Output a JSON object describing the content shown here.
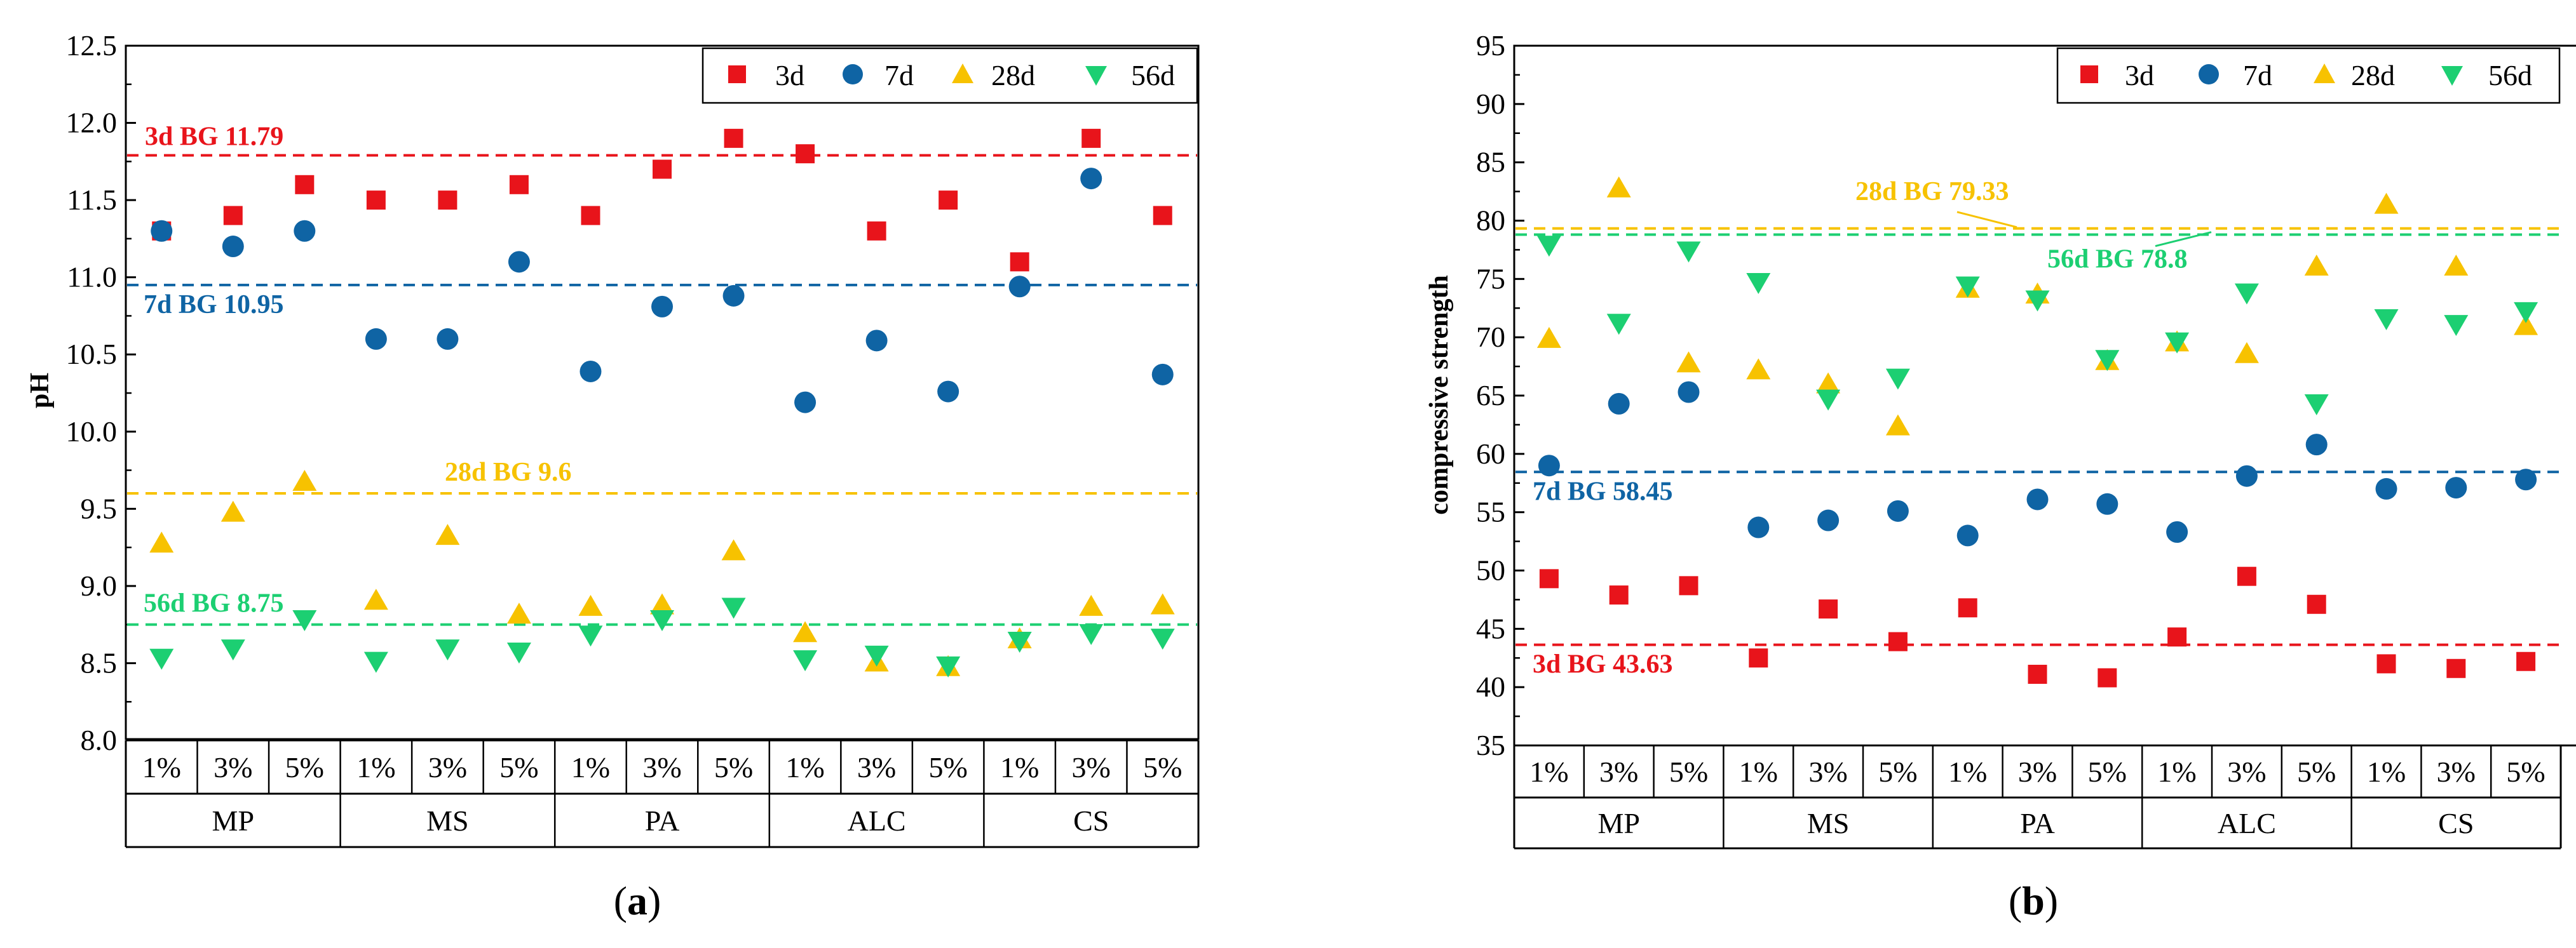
{
  "colors": {
    "3d": "#e8141b",
    "7d": "#0f64a4",
    "28d": "#f7c200",
    "56d": "#1ccf72"
  },
  "chart_data": [
    {
      "type": "scatter",
      "panel_label": "a",
      "ylabel": "pH",
      "ylim": [
        8.0,
        12.5
      ],
      "yticks": [
        "8.0",
        "8.5",
        "9.0",
        "9.5",
        "10.0",
        "10.5",
        "11.0",
        "11.5",
        "12.0",
        "12.5"
      ],
      "groups": [
        "MP",
        "MS",
        "PA",
        "ALC",
        "CS"
      ],
      "subcategories": [
        "1%",
        "3%",
        "5%"
      ],
      "legend": [
        "3d",
        "7d",
        "28d",
        "56d"
      ],
      "series": [
        {
          "name": "3d",
          "marker": "square",
          "values": [
            11.3,
            11.4,
            11.6,
            11.5,
            11.5,
            11.6,
            11.4,
            11.7,
            11.9,
            11.8,
            11.3,
            11.5,
            11.1,
            11.9,
            11.4
          ]
        },
        {
          "name": "7d",
          "marker": "circle",
          "values": [
            11.3,
            11.2,
            11.3,
            10.6,
            10.6,
            11.1,
            10.39,
            10.81,
            10.88,
            10.19,
            10.59,
            10.26,
            10.94,
            11.64,
            10.37
          ]
        },
        {
          "name": "28d",
          "marker": "triangle-up",
          "values": [
            9.27,
            9.47,
            9.67,
            8.9,
            9.32,
            8.81,
            8.86,
            8.87,
            9.22,
            8.69,
            8.5,
            8.47,
            8.65,
            8.86,
            8.87
          ]
        },
        {
          "name": "56d",
          "marker": "triangle-down",
          "values": [
            8.54,
            8.6,
            8.79,
            8.52,
            8.6,
            8.58,
            8.69,
            8.79,
            8.87,
            8.53,
            8.56,
            8.49,
            8.65,
            8.7,
            8.67
          ]
        }
      ],
      "reference_lines": [
        {
          "series": "3d",
          "value": 11.79,
          "label": "3d  BG  11.79"
        },
        {
          "series": "7d",
          "value": 10.95,
          "label": "7d  BG  10.95"
        },
        {
          "series": "28d",
          "value": 9.6,
          "label": "28d  BG  9.6"
        },
        {
          "series": "56d",
          "value": 8.75,
          "label": "56d  BG  8.75"
        }
      ]
    },
    {
      "type": "scatter",
      "panel_label": "b",
      "ylabel": "compressive strength",
      "ylim": [
        35,
        95
      ],
      "yticks": [
        "35",
        "40",
        "45",
        "50",
        "55",
        "60",
        "65",
        "70",
        "75",
        "80",
        "85",
        "90",
        "95"
      ],
      "groups": [
        "MP",
        "MS",
        "PA",
        "ALC",
        "CS"
      ],
      "subcategories": [
        "1%",
        "3%",
        "5%"
      ],
      "legend": [
        "3d",
        "7d",
        "28d",
        "56d"
      ],
      "series": [
        {
          "name": "3d",
          "marker": "square",
          "values": [
            49.3,
            47.9,
            48.7,
            42.5,
            46.7,
            43.9,
            46.8,
            41.1,
            40.8,
            44.3,
            49.5,
            47.1,
            42.0,
            41.6,
            42.2
          ]
        },
        {
          "name": "7d",
          "marker": "circle",
          "values": [
            59.0,
            64.3,
            65.3,
            53.7,
            54.3,
            55.1,
            53.0,
            56.1,
            55.7,
            53.3,
            58.1,
            60.8,
            57.0,
            57.1,
            57.8
          ]
        },
        {
          "name": "28d",
          "marker": "triangle-up",
          "values": [
            69.8,
            82.7,
            67.7,
            67.1,
            65.9,
            62.3,
            74.1,
            73.6,
            67.9,
            69.5,
            68.5,
            76.0,
            81.3,
            76.0,
            70.9
          ]
        },
        {
          "name": "56d",
          "marker": "triangle-down",
          "values": [
            78.0,
            71.3,
            77.5,
            74.8,
            64.8,
            66.6,
            74.5,
            73.3,
            68.2,
            69.7,
            73.9,
            64.4,
            71.7,
            71.2,
            72.3
          ]
        }
      ],
      "reference_lines": [
        {
          "series": "3d",
          "value": 43.63,
          "label": "3d BG 43.63"
        },
        {
          "series": "7d",
          "value": 58.45,
          "label": "7d BG 58.45"
        },
        {
          "series": "28d",
          "value": 79.33,
          "label": "28d BG 79.33"
        },
        {
          "series": "56d",
          "value": 78.8,
          "label": "56d BG 78.8"
        }
      ]
    }
  ]
}
